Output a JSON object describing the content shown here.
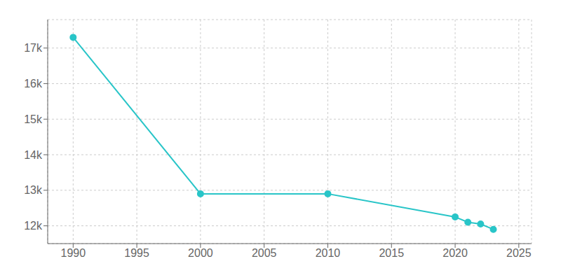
{
  "chart_data": {
    "type": "line",
    "x": [
      1990,
      2000,
      2010,
      2020,
      2021,
      2022,
      2023
    ],
    "values": [
      17300,
      12900,
      12900,
      12250,
      12100,
      12050,
      11900
    ],
    "color": "#29c5c8",
    "marker": "circle",
    "xlim": [
      1988,
      2026
    ],
    "ylim": [
      11500,
      17800
    ],
    "xticks": [
      1990,
      1995,
      2000,
      2005,
      2010,
      2015,
      2020,
      2025
    ],
    "yticks": [
      {
        "value": 12000,
        "label": "12k"
      },
      {
        "value": 13000,
        "label": "13k"
      },
      {
        "value": 14000,
        "label": "14k"
      },
      {
        "value": 15000,
        "label": "15k"
      },
      {
        "value": 16000,
        "label": "16k"
      },
      {
        "value": 17000,
        "label": "17k"
      }
    ],
    "grid": true
  }
}
